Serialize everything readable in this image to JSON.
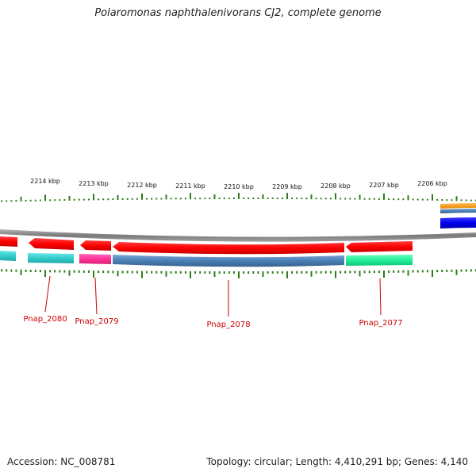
{
  "title": "Polaromonas naphthalenivorans CJ2, complete genome",
  "footer": {
    "accession": "Accession: NC_008781",
    "topology": "Topology: circular; Length: 4,410,291 bp; Genes: 4,140"
  },
  "ruler": {
    "labels": [
      "2214 kbp",
      "2213 kbp",
      "2212 kbp",
      "2211 kbp",
      "2210 kbp",
      "2209 kbp",
      "2208 kbp",
      "2207 kbp",
      "2206 kbp"
    ]
  },
  "genes": [
    {
      "name": "Pnap_2080"
    },
    {
      "name": "Pnap_2079"
    },
    {
      "name": "Pnap_2078"
    },
    {
      "name": "Pnap_2077"
    }
  ],
  "colors": {
    "tick": "#2e7d1a",
    "backbone": "#8c8c8c",
    "forward_cds": "#ff0000",
    "cyan": "#33cccc",
    "magenta": "#ff3399",
    "steel_blue": "#4a7fb5",
    "spring_green": "#22ee99",
    "blue": "#0000ee",
    "orange": "#ff9900",
    "label": "#cc0000"
  }
}
